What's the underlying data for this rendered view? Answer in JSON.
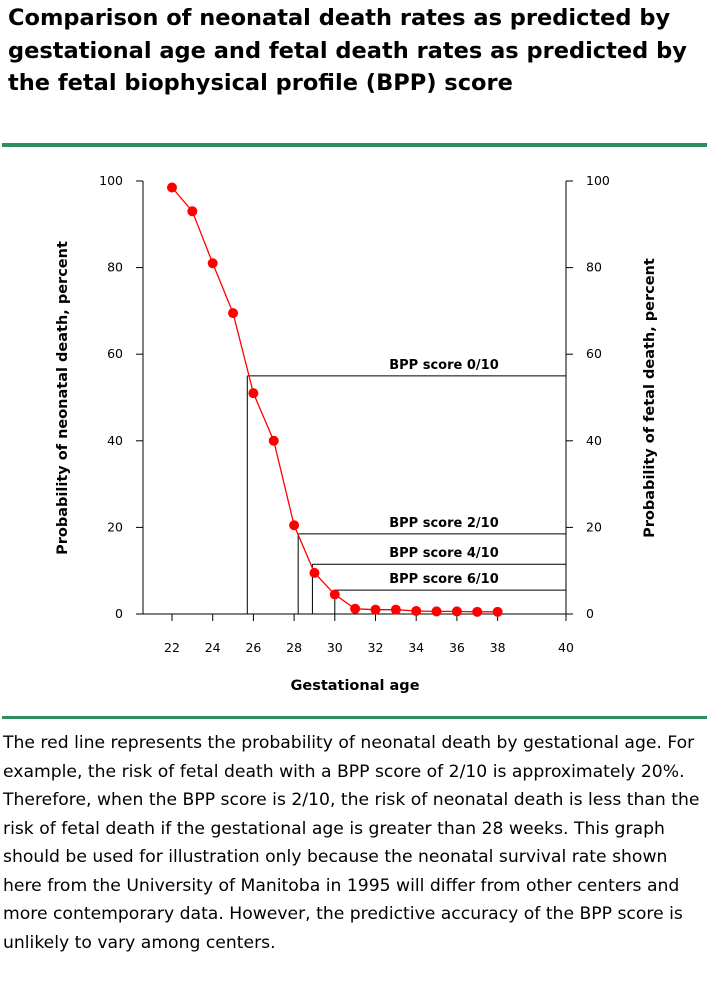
{
  "title": "Comparison of neonatal death rates as predicted by gestational age and fetal death rates as predicted by the fetal biophysical profile (BPP) score",
  "caption": "The red line represents the probability of neonatal death by gestational age. For example, the risk of fetal death with a BPP score of 2/10 is approximately 20%. Therefore, when the BPP score is 2/10, the risk of neonatal death is less than the risk of fetal death if the gestational age is greater than 28 weeks. This graph should be used for illustration only because the neonatal survival rate shown here from the University of Manitoba in 1995 will differ from other centers and more contemporary data. However, the predictive accuracy of the BPP score is unlikely to vary among centers.",
  "colors": {
    "accent_rule": "#2f8e5e",
    "series": "#ff0000",
    "axis": "#000000"
  },
  "chart_data": {
    "type": "line",
    "title": "",
    "xlabel": "Gestational age",
    "ylabel_left": "Probability of neonatal death, percent",
    "ylabel_right": "Probability of fetal death, percent",
    "xlim": [
      21,
      40
    ],
    "ylim": [
      0,
      100
    ],
    "x_ticks": [
      22,
      24,
      26,
      28,
      30,
      32,
      34,
      36,
      38,
      40
    ],
    "y_ticks": [
      0,
      20,
      40,
      60,
      80,
      100
    ],
    "grid": false,
    "series": [
      {
        "x": [
          22,
          23,
          24,
          25,
          26,
          27,
          28,
          29,
          30,
          31,
          32,
          33,
          34,
          35,
          36,
          37,
          38
        ],
        "values": [
          98.5,
          93,
          81,
          69.5,
          51,
          40,
          20.5,
          9.5,
          4.5,
          1.2,
          1,
          1,
          0.7,
          0.6,
          0.6,
          0.5,
          0.5
        ]
      }
    ],
    "annotations": [
      {
        "label": "BPP score 0/10",
        "fetal_death": 55,
        "x_at": 25.7
      },
      {
        "label": "BPP score 2/10",
        "fetal_death": 18.5,
        "x_at": 28.2
      },
      {
        "label": "BPP score 4/10",
        "fetal_death": 11.5,
        "x_at": 28.9
      },
      {
        "label": "BPP score 6/10",
        "fetal_death": 5.5,
        "x_at": 30.0
      }
    ]
  }
}
